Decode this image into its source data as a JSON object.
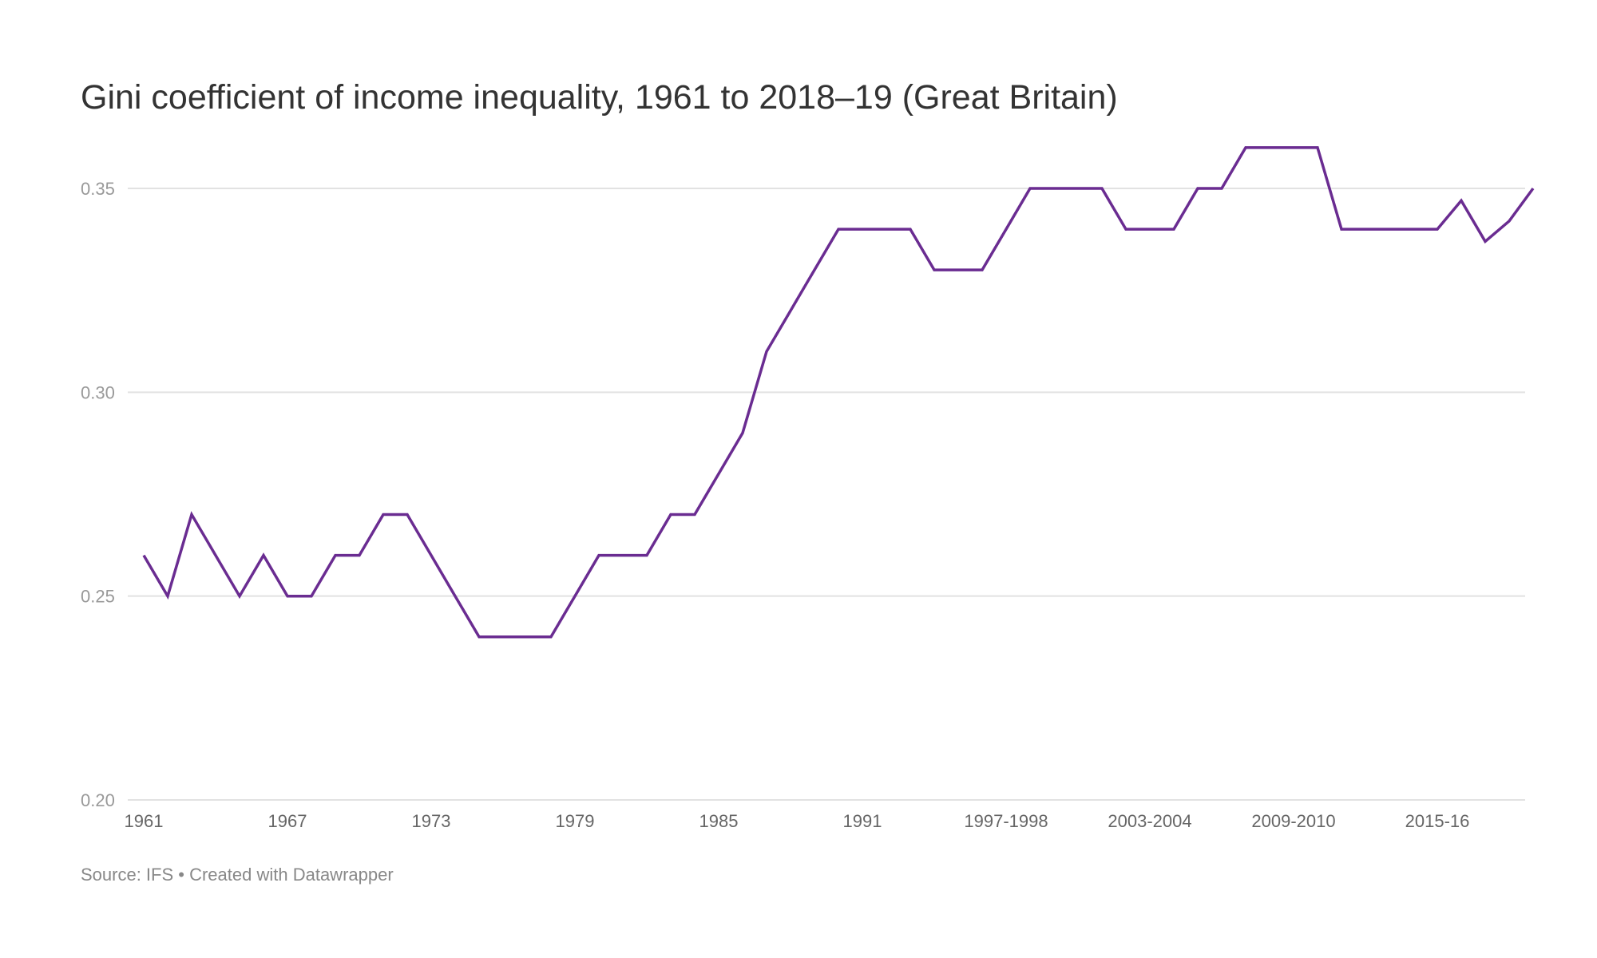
{
  "title": "Gini coefficient of income inequality, 1961 to 2018–19 (Great Britain)",
  "footer": {
    "source": "Source: IFS",
    "separator": " • ",
    "credit": "Created with Datawrapper"
  },
  "colors": {
    "line": "#6a2c91",
    "grid": "#e2e2e2",
    "tick_text": "#999999",
    "x_tick_text": "#666666",
    "title": "#333333"
  },
  "chart_data": {
    "type": "line",
    "title": "Gini coefficient of income inequality, 1961 to 2018–19 (Great Britain)",
    "xlabel": "",
    "ylabel": "",
    "ylim": [
      0.2,
      0.36
    ],
    "y_ticks": [
      {
        "value": 0.2,
        "label": "0.20"
      },
      {
        "value": 0.25,
        "label": "0.25"
      },
      {
        "value": 0.3,
        "label": "0.30"
      },
      {
        "value": 0.35,
        "label": "0.35"
      }
    ],
    "grid": true,
    "x_tick_labels": [
      {
        "index": 0,
        "label": "1961"
      },
      {
        "index": 6,
        "label": "1967"
      },
      {
        "index": 12,
        "label": "1973"
      },
      {
        "index": 18,
        "label": "1979"
      },
      {
        "index": 24,
        "label": "1985"
      },
      {
        "index": 30,
        "label": "1991"
      },
      {
        "index": 36,
        "label": "1997-1998"
      },
      {
        "index": 42,
        "label": "2003-2004"
      },
      {
        "index": 48,
        "label": "2009-2010"
      },
      {
        "index": 54,
        "label": "2015-16"
      }
    ],
    "series": [
      {
        "name": "Gini coefficient",
        "values": [
          0.26,
          0.25,
          0.27,
          0.26,
          0.25,
          0.26,
          0.25,
          0.25,
          0.26,
          0.26,
          0.27,
          0.27,
          0.26,
          0.25,
          0.24,
          0.24,
          0.24,
          0.24,
          0.25,
          0.26,
          0.26,
          0.26,
          0.27,
          0.27,
          0.28,
          0.29,
          0.31,
          0.32,
          0.33,
          0.34,
          0.34,
          0.34,
          0.34,
          0.33,
          0.33,
          0.33,
          0.34,
          0.35,
          0.35,
          0.35,
          0.35,
          0.34,
          0.34,
          0.34,
          0.35,
          0.35,
          0.36,
          0.36,
          0.36,
          0.36,
          0.34,
          0.34,
          0.34,
          0.34,
          0.34,
          0.347,
          0.337,
          0.342,
          0.35
        ]
      }
    ]
  }
}
